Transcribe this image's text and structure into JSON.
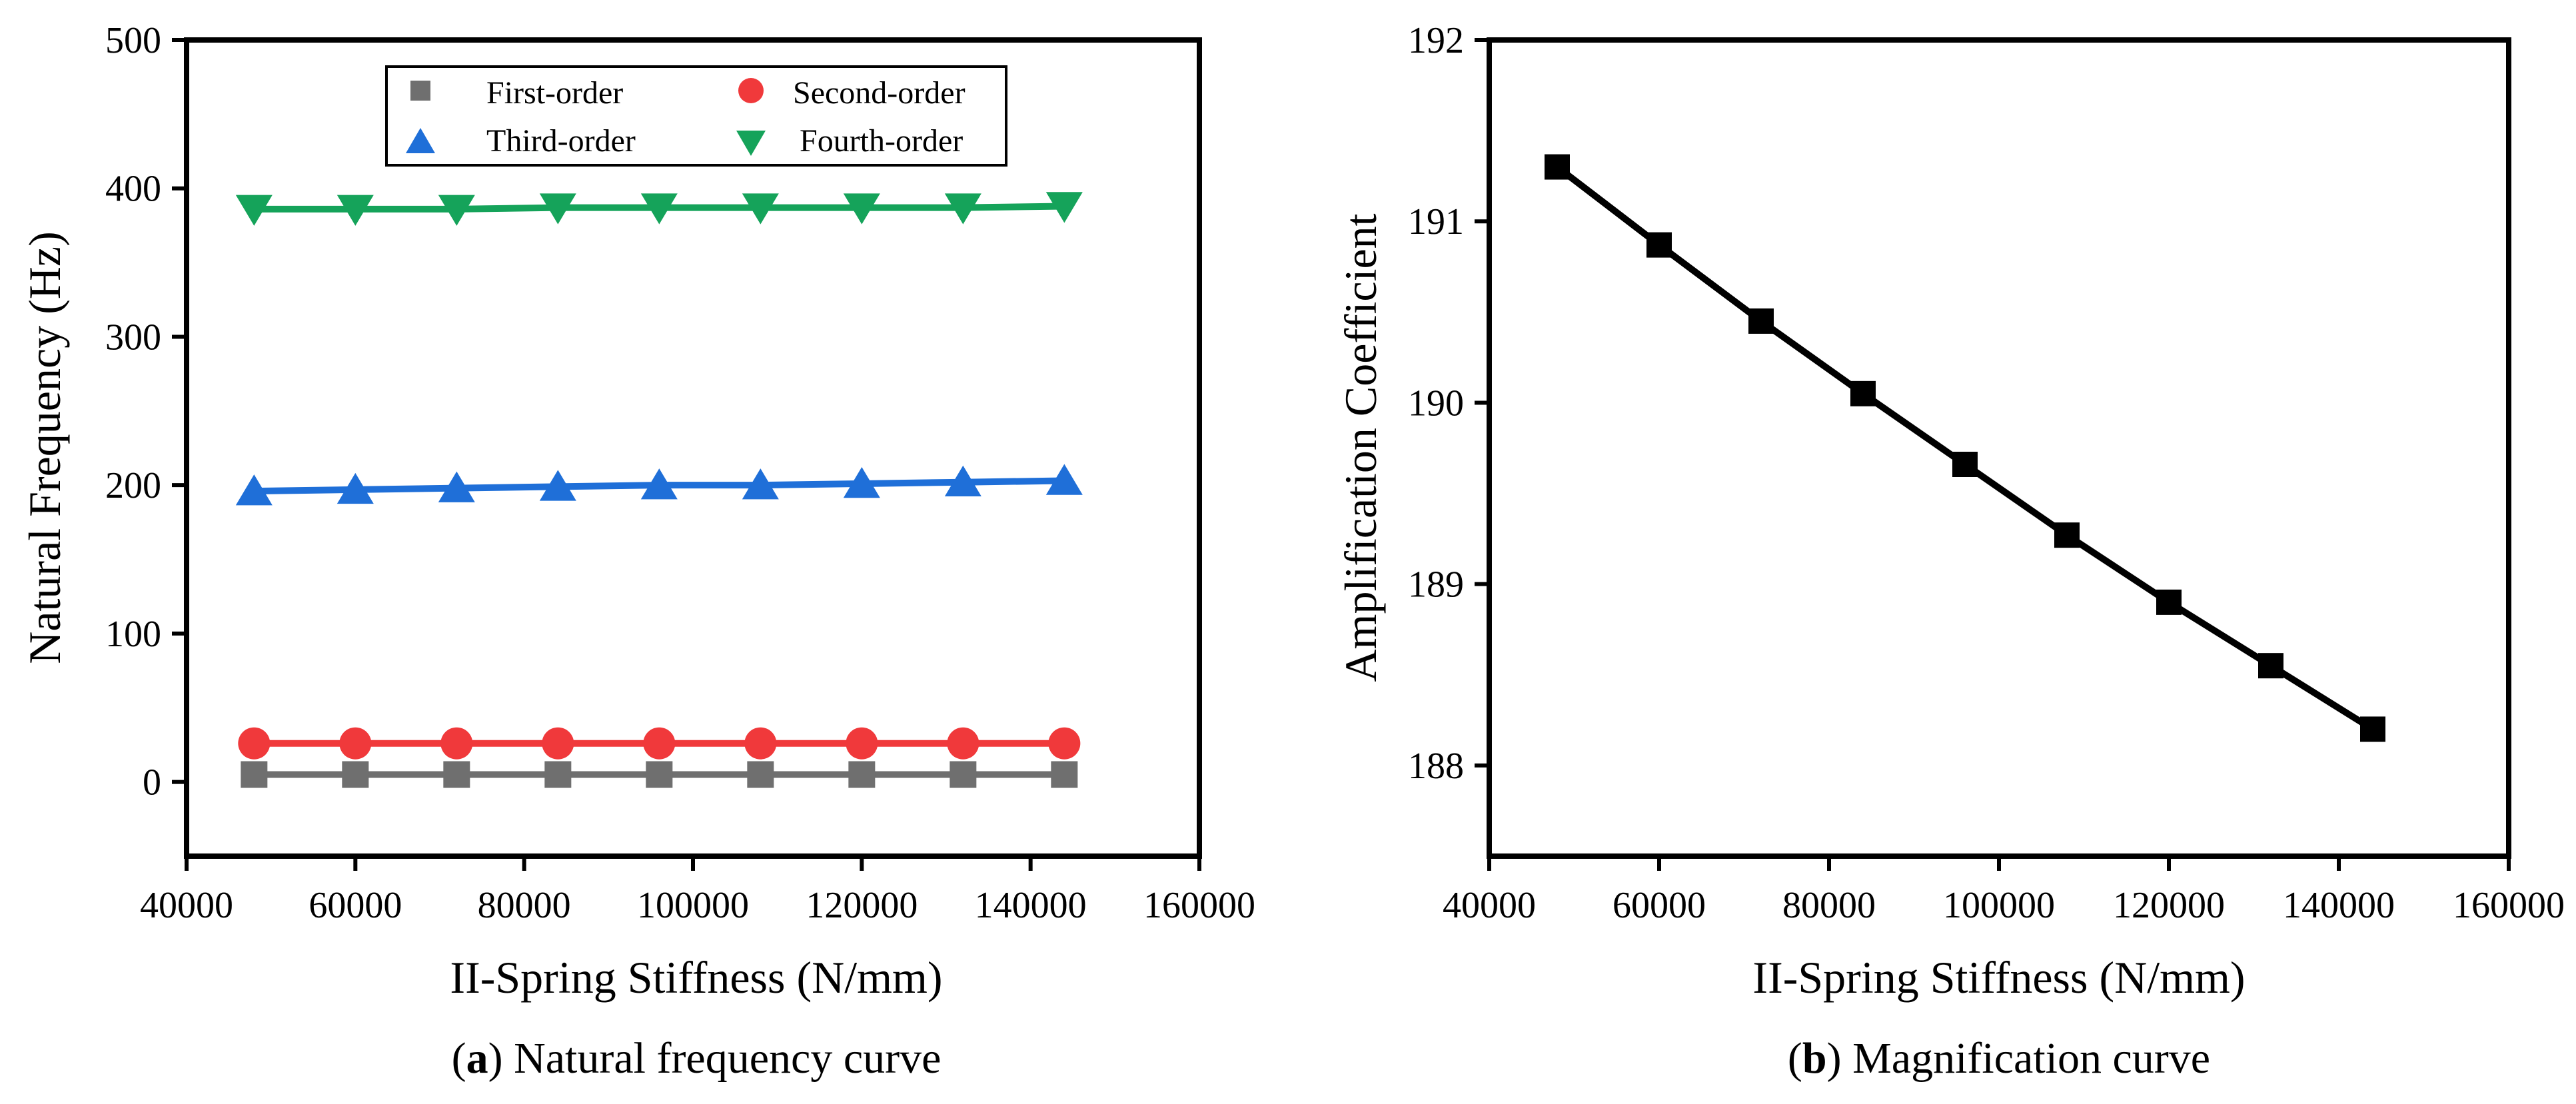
{
  "chart_data": [
    {
      "panel": "a",
      "type": "line",
      "caption_letter": "a",
      "caption_text": ") Natural frequency curve",
      "caption_open": "(",
      "xlabel": "II-Spring Stiffness (N/mm)",
      "ylabel": "Natural Frequency (Hz)",
      "xlim": [
        40000,
        160000
      ],
      "ylim": [
        -50,
        500
      ],
      "xticks": [
        40000,
        60000,
        80000,
        100000,
        120000,
        140000,
        160000
      ],
      "yticks": [
        0,
        100,
        200,
        300,
        400,
        500
      ],
      "grid": false,
      "legend_position": "top-center",
      "x": [
        48000,
        60000,
        72000,
        84000,
        96000,
        108000,
        120000,
        132000,
        144000
      ],
      "series": [
        {
          "name": "First-order",
          "marker": "square",
          "color": "#6f6f6f",
          "values": [
            5,
            5,
            5,
            5,
            5,
            5,
            5,
            5,
            5
          ]
        },
        {
          "name": "Second-order",
          "marker": "circle",
          "color": "#f0393b",
          "values": [
            26,
            26,
            26,
            26,
            26,
            26,
            26,
            26,
            26
          ]
        },
        {
          "name": "Third-order",
          "marker": "triangle-up",
          "color": "#1f6fd8",
          "values": [
            196,
            197,
            198,
            199,
            200,
            200,
            201,
            202,
            203
          ]
        },
        {
          "name": "Fourth-order",
          "marker": "triangle-down",
          "color": "#15a35a",
          "values": [
            386,
            386,
            386,
            387,
            387,
            387,
            387,
            387,
            388
          ]
        }
      ]
    },
    {
      "panel": "b",
      "type": "line",
      "caption_letter": "b",
      "caption_text": ") Magnification curve",
      "caption_open": "(",
      "xlabel": "II-Spring Stiffness (N/mm)",
      "ylabel": "Amplification Coefficient",
      "xlim": [
        40000,
        160000
      ],
      "ylim": [
        187.5,
        192
      ],
      "xticks": [
        40000,
        60000,
        80000,
        100000,
        120000,
        140000,
        160000
      ],
      "yticks": [
        188,
        189,
        190,
        191,
        192
      ],
      "grid": false,
      "legend_position": "none",
      "x": [
        48000,
        60000,
        72000,
        84000,
        96000,
        108000,
        120000,
        132000,
        144000
      ],
      "series": [
        {
          "marker": "square",
          "color": "#000000",
          "values": [
            191.3,
            190.87,
            190.45,
            190.05,
            189.66,
            189.27,
            188.9,
            188.55,
            188.2
          ]
        }
      ]
    }
  ]
}
